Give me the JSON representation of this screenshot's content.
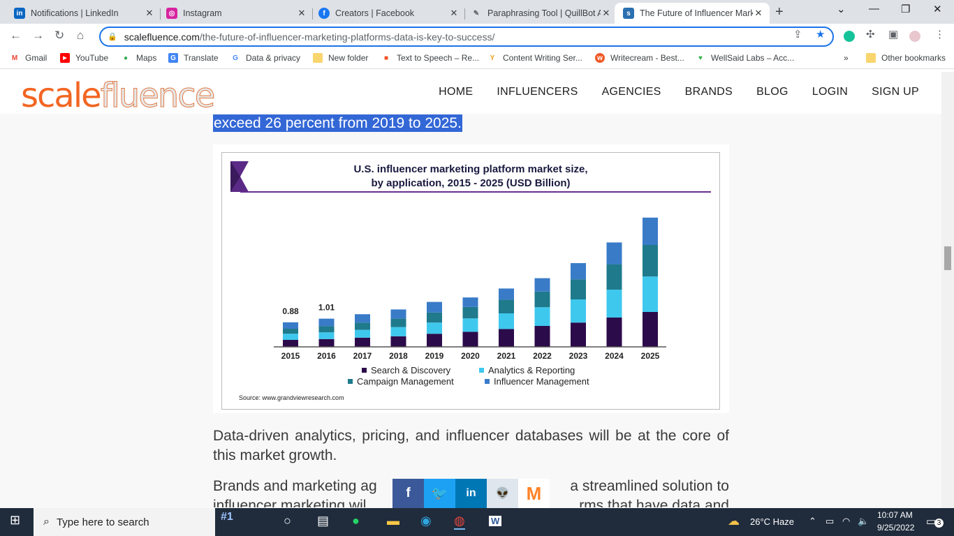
{
  "browser": {
    "tabs": [
      {
        "title": "Notifications | LinkedIn",
        "icon": "linkedin-icon",
        "color": "#0a66c2",
        "glyph": "in"
      },
      {
        "title": "Instagram",
        "icon": "instagram-icon",
        "color": "#d6249f",
        "glyph": "◎"
      },
      {
        "title": "Creators | Facebook",
        "icon": "facebook-icon",
        "color": "#1877f2",
        "glyph": "f"
      },
      {
        "title": "Paraphrasing Tool | QuillBot AI",
        "icon": "quillbot-icon",
        "color": "#5f6368",
        "glyph": "✎"
      },
      {
        "title": "The Future of Influencer Marketing",
        "icon": "scalefluence-icon",
        "color": "#2a6fb0",
        "glyph": "s"
      }
    ],
    "url_domain": "scalefluence.com",
    "url_path": "/the-future-of-influencer-marketing-platforms-data-is-key-to-success/",
    "bookmarks": [
      {
        "label": "Gmail",
        "icon": "gmail-icon",
        "color": "#ea4335",
        "glyph": "M"
      },
      {
        "label": "YouTube",
        "icon": "youtube-icon",
        "color": "#ff0000",
        "glyph": "▶"
      },
      {
        "label": "Maps",
        "icon": "maps-icon",
        "color": "#34a853",
        "glyph": "●"
      },
      {
        "label": "Translate",
        "icon": "translate-icon",
        "color": "#4285f4",
        "glyph": "G"
      },
      {
        "label": "Data & privacy",
        "icon": "google-icon",
        "color": "#4285f4",
        "glyph": "G"
      },
      {
        "label": "New folder",
        "icon": "folder-icon",
        "color": "#f9d56e",
        "glyph": ""
      },
      {
        "label": "Text to Speech – Re...",
        "icon": "microsoft-icon",
        "color": "#f25022",
        "glyph": "■"
      },
      {
        "label": "Content Writing Ser...",
        "icon": "content-icon",
        "color": "#f0a020",
        "glyph": "Y"
      },
      {
        "label": "Writecream - Best...",
        "icon": "writecream-icon",
        "color": "#f05a28",
        "glyph": "w"
      },
      {
        "label": "WellSaid Labs – Acc...",
        "icon": "wellsaid-icon",
        "color": "#35b44b",
        "glyph": "♥"
      }
    ],
    "more_label": "»",
    "other_bookmarks": "Other bookmarks"
  },
  "site": {
    "logo_a": "scale",
    "logo_b": "fluence",
    "nav": [
      "HOME",
      "INFLUENCERS",
      "AGENCIES",
      "BRANDS",
      "BLOG",
      "LOGIN",
      "SIGN UP"
    ]
  },
  "article": {
    "highlight": "exceed 26 percent from 2019 to 2025.",
    "para1": "Data-driven analytics, pricing, and influencer databases will be at the core of this market growth.",
    "para2_a": "Brands and marketing ag",
    "para2_b": "a streamlined solution to",
    "para2_c": "influencer marketing wil",
    "para2_d": "rms that have data and"
  },
  "chart_data": {
    "type": "bar",
    "stacked": true,
    "title": "U.S. influencer marketing platform market size,",
    "subtitle": "by application, 2015 - 2025 (USD Billion)",
    "categories": [
      "2015",
      "2016",
      "2017",
      "2018",
      "2019",
      "2020",
      "2021",
      "2022",
      "2023",
      "2024",
      "2025"
    ],
    "series": [
      {
        "name": "Search & Discovery",
        "color": "#2c0b4a",
        "values": [
          0.25,
          0.28,
          0.33,
          0.38,
          0.47,
          0.54,
          0.64,
          0.75,
          0.87,
          1.05,
          1.25
        ]
      },
      {
        "name": "Analytics & Reporting",
        "color": "#3fc8ee",
        "values": [
          0.22,
          0.24,
          0.28,
          0.33,
          0.4,
          0.48,
          0.56,
          0.67,
          0.83,
          1.0,
          1.27
        ]
      },
      {
        "name": "Campaign Management",
        "color": "#1f7a8c",
        "values": [
          0.18,
          0.22,
          0.26,
          0.3,
          0.36,
          0.41,
          0.49,
          0.56,
          0.72,
          0.91,
          1.13
        ]
      },
      {
        "name": "Influencer Management",
        "color": "#3a7bc8",
        "values": [
          0.23,
          0.27,
          0.3,
          0.33,
          0.38,
          0.34,
          0.4,
          0.48,
          0.58,
          0.78,
          0.98
        ]
      }
    ],
    "data_labels": [
      {
        "category": "2015",
        "text": "0.88"
      },
      {
        "category": "2016",
        "text": "1.01"
      }
    ],
    "ylim": [
      0,
      5
    ],
    "legend": "bottom",
    "source": "Source: www.grandviewresearch.com"
  },
  "share": [
    {
      "label": "f",
      "icon": "facebook-share-icon",
      "color": "#3b5998"
    },
    {
      "label": "🐦",
      "icon": "twitter-share-icon",
      "color": "#1da1f2"
    },
    {
      "label": "in",
      "icon": "linkedin-share-icon",
      "color": "#0077b5"
    },
    {
      "label": "👽",
      "icon": "reddit-share-icon",
      "color": "#dfe6ee"
    },
    {
      "label": "M",
      "icon": "mix-share-icon",
      "color": "#ffffff"
    }
  ],
  "taskbar": {
    "search_placeholder": "Type here to search",
    "weather": "26°C  Haze",
    "time": "10:07 AM",
    "date": "9/25/2022",
    "notifications": "3",
    "promo": "#1"
  }
}
